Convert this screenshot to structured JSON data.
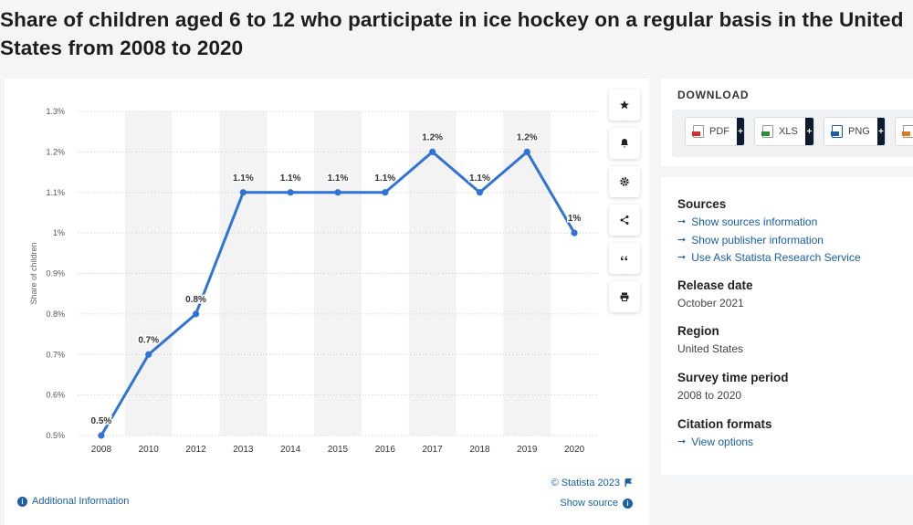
{
  "page": {
    "title": "Share of children aged 6 to 12 who participate in ice hockey on a regular basis in the United States from 2008 to 2020"
  },
  "chart_data": {
    "type": "line",
    "title": "",
    "xlabel": "",
    "ylabel": "Share of children",
    "categories": [
      "2008",
      "2010",
      "2012",
      "2013",
      "2014",
      "2015",
      "2016",
      "2017",
      "2018",
      "2019",
      "2020"
    ],
    "series": [
      {
        "values": [
          0.5,
          0.7,
          0.8,
          1.1,
          1.1,
          1.1,
          1.1,
          1.2,
          1.1,
          1.2,
          1.0
        ],
        "labels": [
          "0.5%",
          "0.7%",
          "0.8%",
          "1.1%",
          "1.1%",
          "1.1%",
          "1.1%",
          "1.2%",
          "1.1%",
          "1.2%",
          "1%"
        ]
      }
    ],
    "ylim": [
      0.5,
      1.3
    ],
    "yticks": [
      0.5,
      0.6,
      0.7,
      0.8,
      0.9,
      1.0,
      1.1,
      1.2,
      1.3
    ],
    "ytick_labels": [
      "0.5%",
      "0.6%",
      "0.7%",
      "0.8%",
      "0.9%",
      "1%",
      "1.1%",
      "1.2%",
      "1.3%"
    ],
    "grid": true,
    "legend": "none",
    "line_color": "#2f73d9"
  },
  "chart_footer": {
    "copyright": "© Statista 2023",
    "show_source": "Show source",
    "additional_info": "Additional Information"
  },
  "toolbar": {
    "buttons": [
      "star-icon",
      "bell-icon",
      "gear-icon",
      "share-icon",
      "quote-icon",
      "print-icon"
    ]
  },
  "download": {
    "title": "DOWNLOAD",
    "buttons": [
      {
        "label": "PDF",
        "icon": "pdf-file-icon",
        "color": "#d32f2f"
      },
      {
        "label": "XLS",
        "icon": "xls-file-icon",
        "color": "#2e8b3a"
      },
      {
        "label": "PNG",
        "icon": "png-file-icon",
        "color": "#1a5fa8"
      },
      {
        "label": "",
        "icon": "file-icon",
        "color": "#e07b1a"
      }
    ]
  },
  "info": {
    "sources_heading": "Sources",
    "sources_links": [
      "Show sources information",
      "Show publisher information",
      "Use Ask Statista Research Service"
    ],
    "release_heading": "Release date",
    "release_value": "October 2021",
    "region_heading": "Region",
    "region_value": "United States",
    "survey_heading": "Survey time period",
    "survey_value": "2008 to 2020",
    "citation_heading": "Citation formats",
    "citation_link": "View options"
  }
}
